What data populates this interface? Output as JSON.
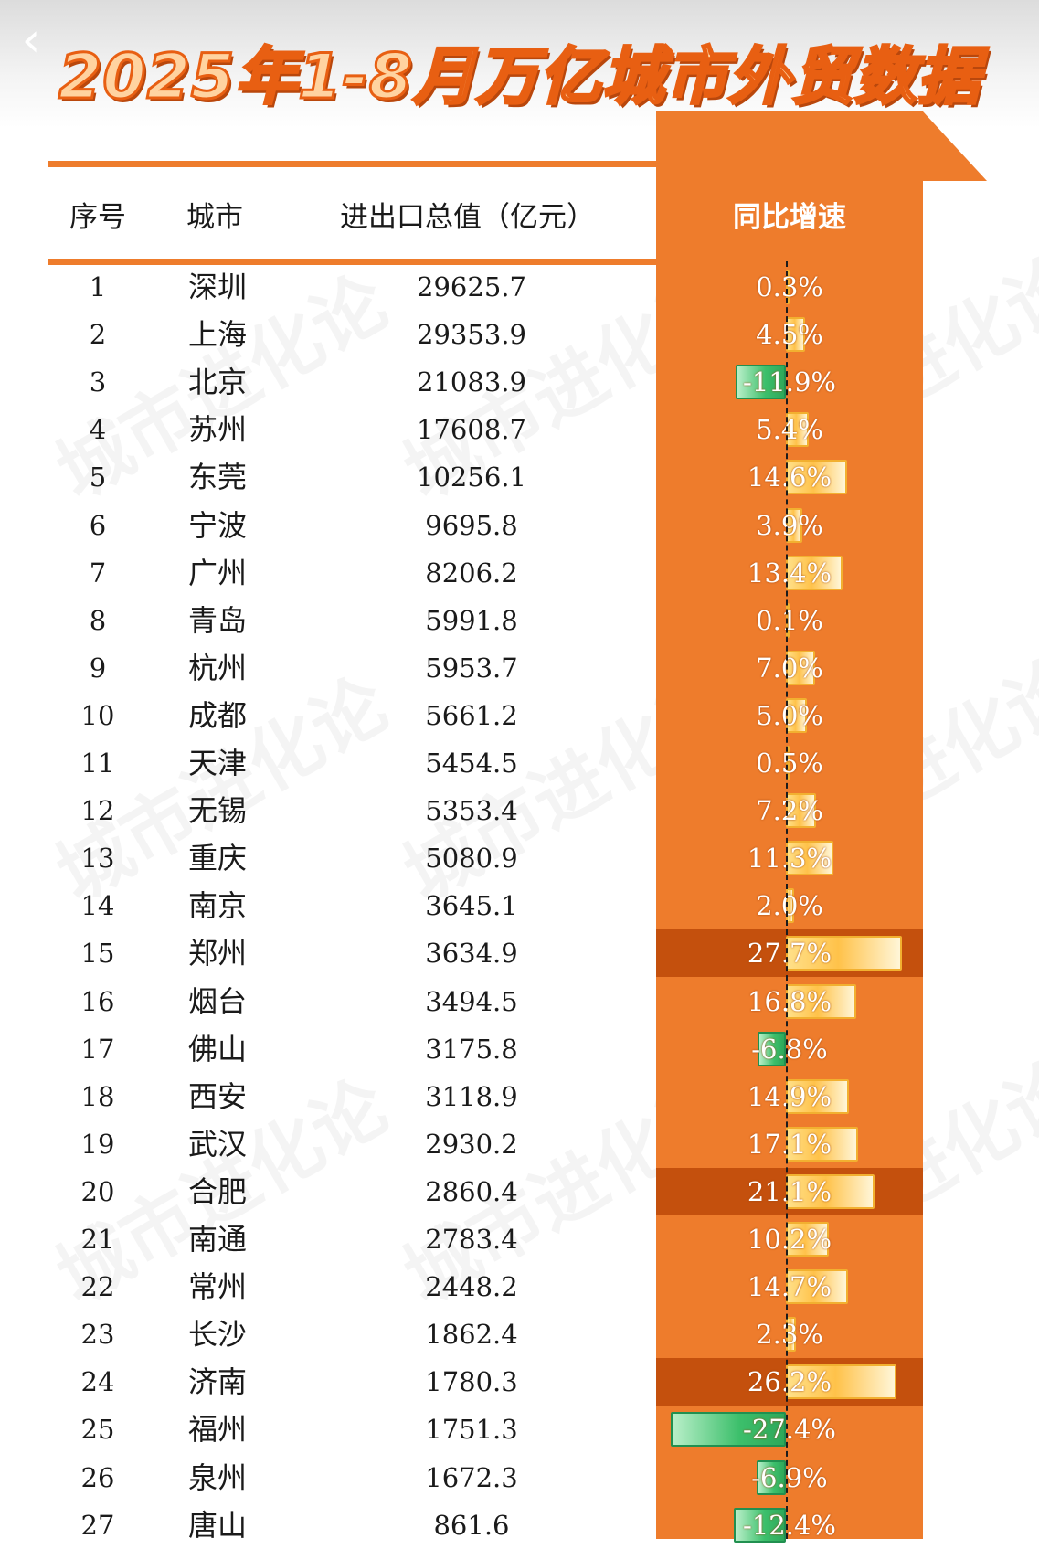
{
  "title": "2025年1-8月万亿城市外贸数据",
  "watermark": "城市进化论",
  "colors": {
    "accent": "#ee7c2c",
    "positive_bar": "#ffc24a",
    "negative_bar": "#3cbf6b"
  },
  "icons": {
    "back": "chevron-left-icon"
  },
  "chart_data": {
    "type": "table",
    "columns": [
      "序号",
      "城市",
      "进出口总值（亿元）",
      "同比增速"
    ],
    "rows": [
      {
        "rank": "1",
        "city": "深圳",
        "value": "29625.7",
        "growth": "0.3%",
        "growth_value": 0.3
      },
      {
        "rank": "2",
        "city": "上海",
        "value": "29353.9",
        "growth": "4.5%",
        "growth_value": 4.5
      },
      {
        "rank": "3",
        "city": "北京",
        "value": "21083.9",
        "growth": "-11.9%",
        "growth_value": -11.9
      },
      {
        "rank": "4",
        "city": "苏州",
        "value": "17608.7",
        "growth": "5.4%",
        "growth_value": 5.4
      },
      {
        "rank": "5",
        "city": "东莞",
        "value": "10256.1",
        "growth": "14.6%",
        "growth_value": 14.6
      },
      {
        "rank": "6",
        "city": "宁波",
        "value": "9695.8",
        "growth": "3.9%",
        "growth_value": 3.9
      },
      {
        "rank": "7",
        "city": "广州",
        "value": "8206.2",
        "growth": "13.4%",
        "growth_value": 13.4
      },
      {
        "rank": "8",
        "city": "青岛",
        "value": "5991.8",
        "growth": "0.1%",
        "growth_value": 0.1
      },
      {
        "rank": "9",
        "city": "杭州",
        "value": "5953.7",
        "growth": "7.0%",
        "growth_value": 7.0
      },
      {
        "rank": "10",
        "city": "成都",
        "value": "5661.2",
        "growth": "5.0%",
        "growth_value": 5.0
      },
      {
        "rank": "11",
        "city": "天津",
        "value": "5454.5",
        "growth": "0.5%",
        "growth_value": 0.5
      },
      {
        "rank": "12",
        "city": "无锡",
        "value": "5353.4",
        "growth": "7.2%",
        "growth_value": 7.2
      },
      {
        "rank": "13",
        "city": "重庆",
        "value": "5080.9",
        "growth": "11.3%",
        "growth_value": 11.3
      },
      {
        "rank": "14",
        "city": "南京",
        "value": "3645.1",
        "growth": "2.0%",
        "growth_value": 2.0
      },
      {
        "rank": "15",
        "city": "郑州",
        "value": "3634.9",
        "growth": "27.7%",
        "growth_value": 27.7,
        "highlight": true
      },
      {
        "rank": "16",
        "city": "烟台",
        "value": "3494.5",
        "growth": "16.8%",
        "growth_value": 16.8
      },
      {
        "rank": "17",
        "city": "佛山",
        "value": "3175.8",
        "growth": "-6.8%",
        "growth_value": -6.8
      },
      {
        "rank": "18",
        "city": "西安",
        "value": "3118.9",
        "growth": "14.9%",
        "growth_value": 14.9
      },
      {
        "rank": "19",
        "city": "武汉",
        "value": "2930.2",
        "growth": "17.1%",
        "growth_value": 17.1
      },
      {
        "rank": "20",
        "city": "合肥",
        "value": "2860.4",
        "growth": "21.1%",
        "growth_value": 21.1,
        "highlight": true
      },
      {
        "rank": "21",
        "city": "南通",
        "value": "2783.4",
        "growth": "10.2%",
        "growth_value": 10.2
      },
      {
        "rank": "22",
        "city": "常州",
        "value": "2448.2",
        "growth": "14.7%",
        "growth_value": 14.7
      },
      {
        "rank": "23",
        "city": "长沙",
        "value": "1862.4",
        "growth": "2.3%",
        "growth_value": 2.3
      },
      {
        "rank": "24",
        "city": "济南",
        "value": "1780.3",
        "growth": "26.2%",
        "growth_value": 26.2,
        "highlight": true
      },
      {
        "rank": "25",
        "city": "福州",
        "value": "1751.3",
        "growth": "-27.4%",
        "growth_value": -27.4
      },
      {
        "rank": "26",
        "city": "泉州",
        "value": "1672.3",
        "growth": "-6.9%",
        "growth_value": -6.9
      },
      {
        "rank": "27",
        "city": "唐山",
        "value": "861.6",
        "growth": "-12.4%",
        "growth_value": -12.4
      }
    ]
  }
}
